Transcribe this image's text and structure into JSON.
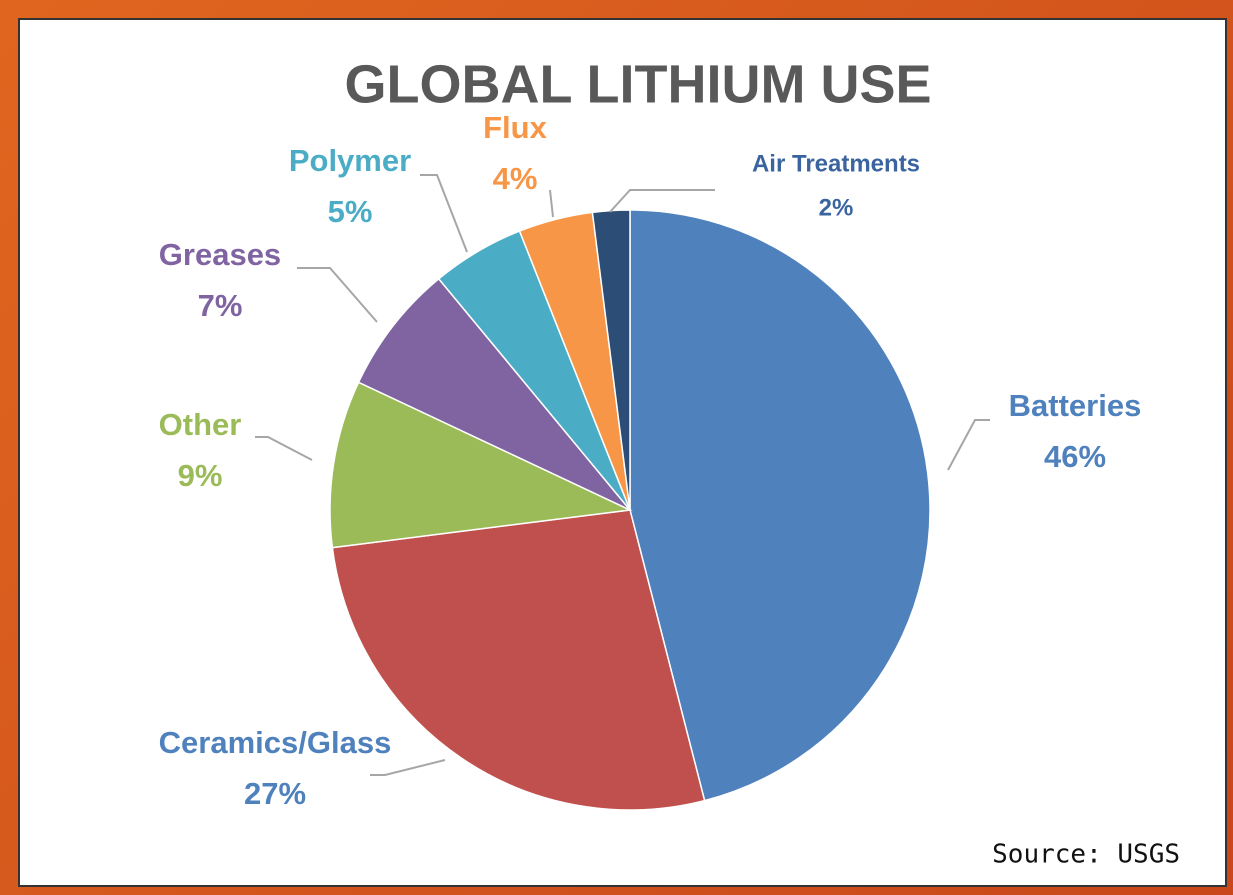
{
  "chart_data": {
    "type": "pie",
    "title": "GLOBAL LITHIUM USE",
    "categories": [
      "Batteries",
      "Ceramics/Glass",
      "Other",
      "Greases",
      "Polymer",
      "Flux",
      "Air Treatments"
    ],
    "values": [
      46,
      27,
      9,
      7,
      5,
      4,
      2
    ],
    "value_labels": [
      "46%",
      "27%",
      "9%",
      "7%",
      "5%",
      "4%",
      "2%"
    ],
    "colors": [
      "#4f81bd",
      "#c0504d",
      "#9bbb59",
      "#8064a2",
      "#4bacc6",
      "#f79646",
      "#2c4d75"
    ],
    "label_colors": [
      "#4f81bd",
      "#4f81bd",
      "#9bbb59",
      "#8064a2",
      "#4bacc6",
      "#f79646",
      "#3a64a0"
    ],
    "source": "Source: USGS"
  }
}
